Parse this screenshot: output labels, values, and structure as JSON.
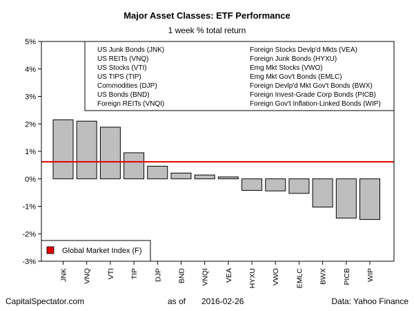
{
  "chart_data": {
    "type": "bar",
    "title": "Major Asset Classes: ETF Performance",
    "subtitle": "1 week % total return",
    "ylabel": "",
    "xlabel": "",
    "ylim": [
      -3,
      5
    ],
    "ytick_labels": [
      "-3%",
      "-2%",
      "-1%",
      "0%",
      "1%",
      "2%",
      "3%",
      "4%",
      "5%"
    ],
    "yticks": [
      -3,
      -2,
      -1,
      0,
      1,
      2,
      3,
      4,
      5
    ],
    "categories": [
      "JNK",
      "VNQ",
      "VTI",
      "TIP",
      "DJP",
      "BND",
      "VNQI",
      "VEA",
      "HYXU",
      "VWO",
      "EMLC",
      "BWX",
      "PICB",
      "WIP"
    ],
    "values": [
      2.15,
      2.1,
      1.88,
      0.95,
      0.46,
      0.21,
      0.14,
      0.07,
      -0.42,
      -0.44,
      -0.53,
      -1.03,
      -1.43,
      -1.48
    ],
    "reference_line": {
      "label": "Global Market Index (F)",
      "value": 0.62,
      "color": "#e00000"
    },
    "bar_color": "#bebebe",
    "legend_left": [
      "US Junk Bonds (JNK)",
      "US REITs (VNQ)",
      "US Stocks (VTI)",
      "US TIPS (TIP)",
      "Commodities (DJP)",
      "US Bonds (BND)",
      "Foreign REITs (VNQI)"
    ],
    "legend_right": [
      "Foreign Stocks Devlp'd Mkts (VEA)",
      "Foreign Junk Bonds (HYXU)",
      "Emg Mkt Stocks (VWO)",
      "Emg Mkt Gov't Bonds (EMLC)",
      "Foreign Devlp'd Mkt Gov't Bonds (BWX)",
      "Foreign Invest-Grade Corp Bonds (PICB)",
      "Foreign Gov't Inflation-Linked Bonds (WIP)"
    ],
    "legend_placement": "top-right",
    "grid": false
  },
  "footer": {
    "source_left": "CapitalSpectator.com",
    "as_of_label": "as of",
    "date": "2016-02-26",
    "data_source": "Data: Yahoo Finance"
  }
}
